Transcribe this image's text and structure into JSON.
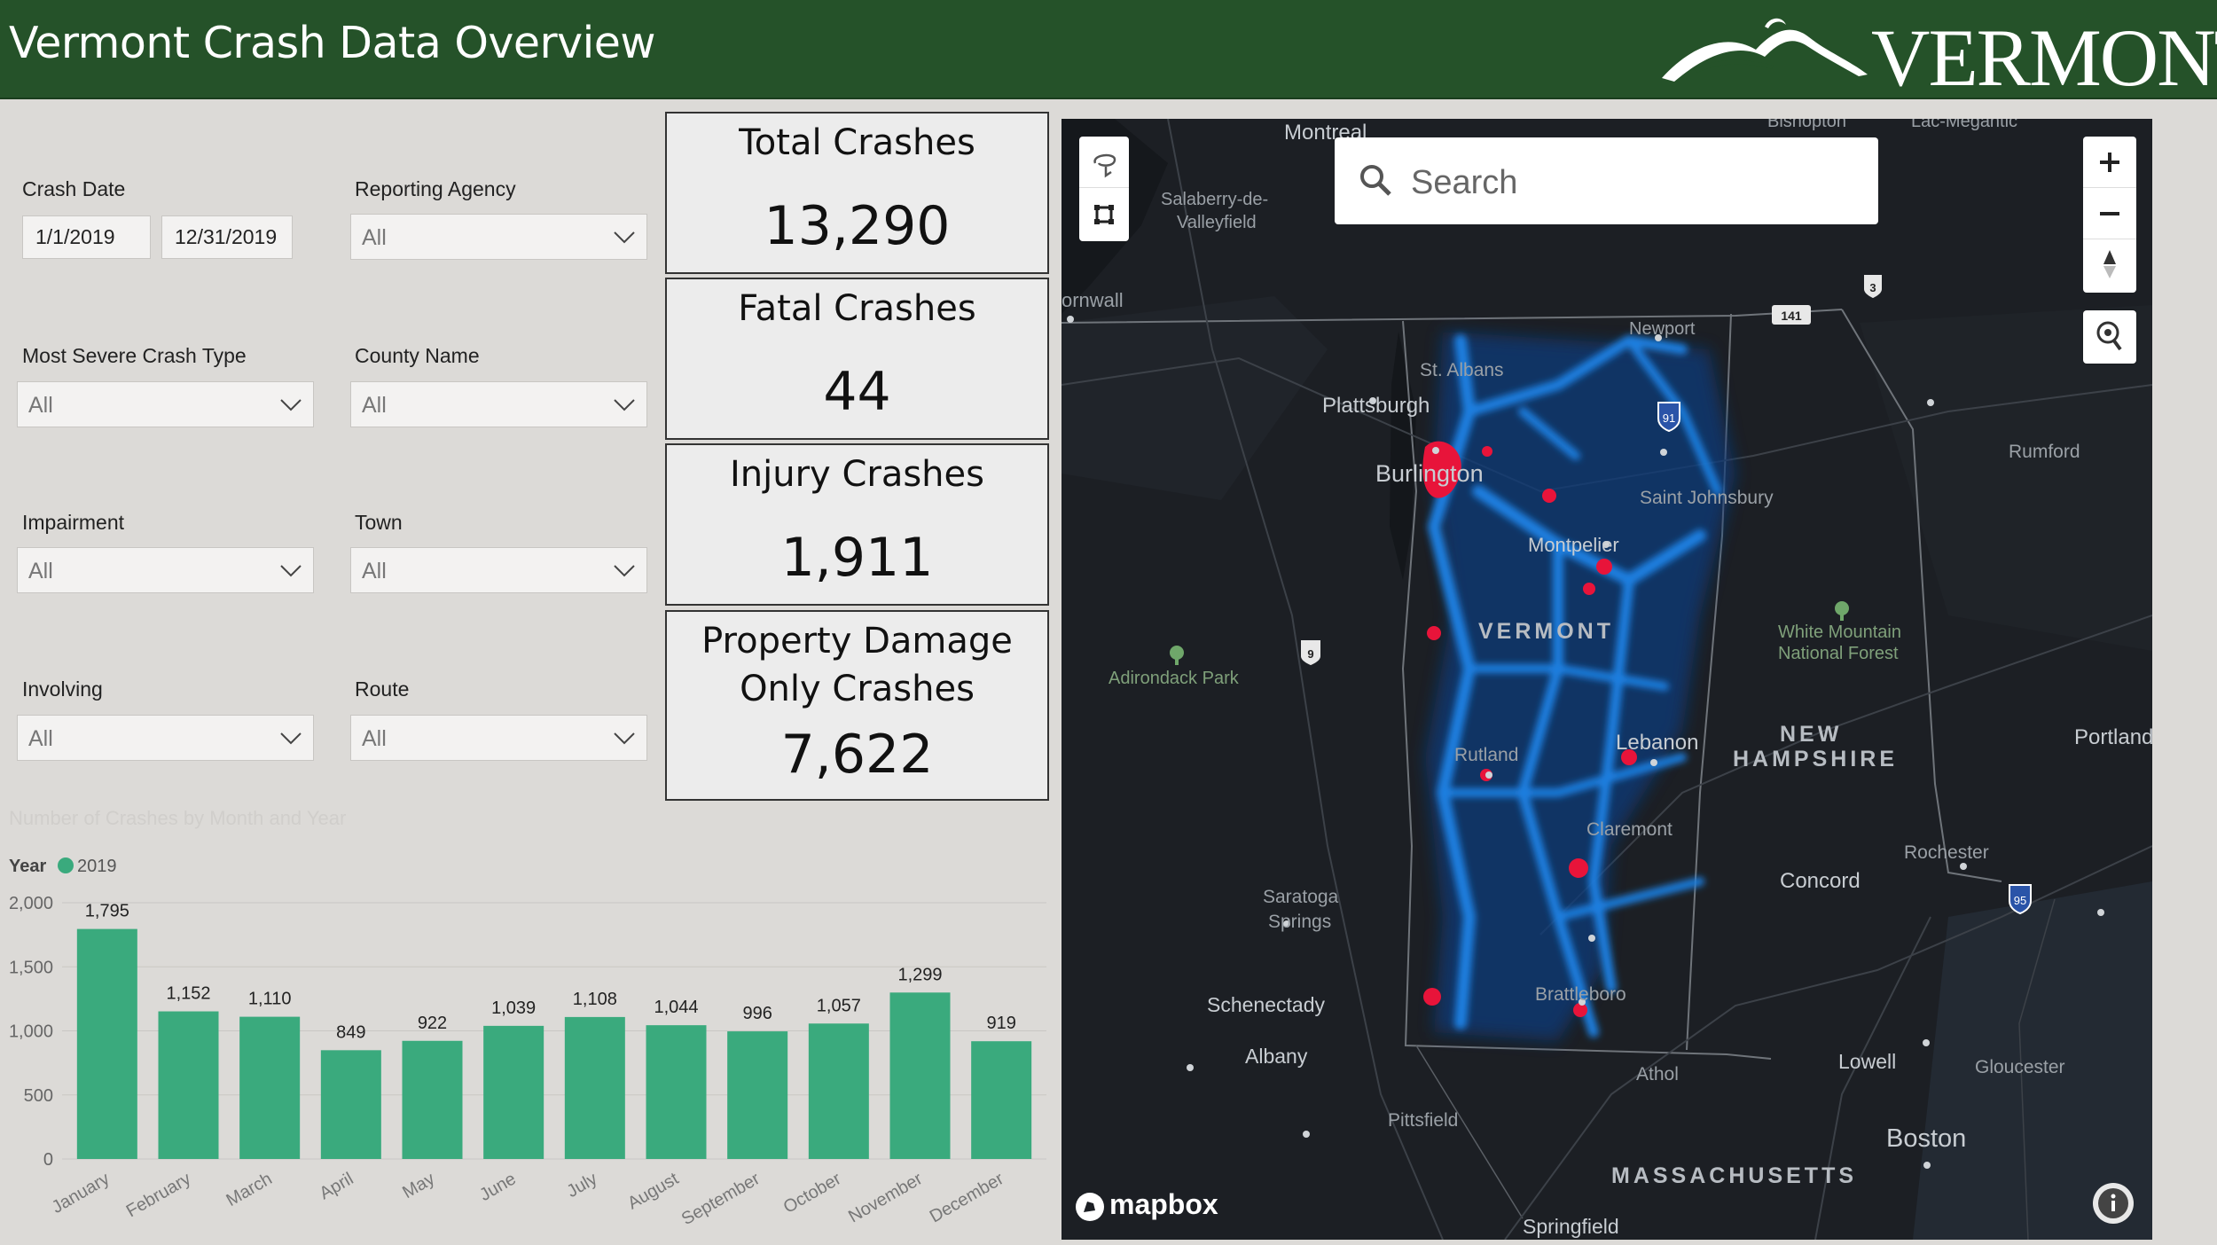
{
  "header": {
    "title": "Vermont Crash Data Overview",
    "logo_text": "VERMONT"
  },
  "filters": {
    "crash_date": {
      "label": "Crash Date",
      "start": "1/1/2019",
      "end": "12/31/2019"
    },
    "reporting_agency": {
      "label": "Reporting Agency",
      "value": "All"
    },
    "most_severe_crash_type": {
      "label": "Most Severe Crash Type",
      "value": "All"
    },
    "county_name": {
      "label": "County Name",
      "value": "All"
    },
    "impairment": {
      "label": "Impairment",
      "value": "All"
    },
    "town": {
      "label": "Town",
      "value": "All"
    },
    "involving": {
      "label": "Involving",
      "value": "All"
    },
    "route": {
      "label": "Route",
      "value": "All"
    }
  },
  "kpis": [
    {
      "title": "Total Crashes",
      "value": "13,290"
    },
    {
      "title": "Fatal Crashes",
      "value": "44"
    },
    {
      "title": "Injury Crashes",
      "value": "1,911"
    },
    {
      "title": "Property Damage Only Crashes",
      "title_line1": "Property Damage",
      "title_line2": "Only Crashes",
      "value": "7,622"
    }
  ],
  "chart_data": {
    "type": "bar",
    "title": "Number of Crashes by Month and Year",
    "legend_title": "Year",
    "categories": [
      "January",
      "February",
      "March",
      "April",
      "May",
      "June",
      "July",
      "August",
      "September",
      "October",
      "November",
      "December"
    ],
    "series": [
      {
        "name": "2019",
        "color": "#3aaa7d",
        "values": [
          1795,
          1152,
          1110,
          849,
          922,
          1039,
          1108,
          1044,
          996,
          1057,
          1299,
          919
        ]
      }
    ],
    "data_labels": [
      "1,795",
      "1,152",
      "1,110",
      "849",
      "922",
      "1,039",
      "1,108",
      "1,044",
      "996",
      "1,057",
      "1,299",
      "919"
    ],
    "y_ticks": [
      0,
      500,
      1000,
      1500,
      2000
    ],
    "y_tick_labels": [
      "0",
      "500",
      "1,000",
      "1,500",
      "2,000"
    ],
    "ylim": [
      0,
      2000
    ],
    "grid": true,
    "legend_position": "top-left"
  },
  "map": {
    "search_placeholder": "Search",
    "attribution": "mapbox",
    "labels": {
      "montreal": "Montreal",
      "salaberry": "Salaberry-de-",
      "valleyfield": "Valleyfield",
      "cornwall": "ornwall",
      "sherbrooke": "Bishopton",
      "lac_megantic": "Lac-Mégantic",
      "newport": "Newport",
      "st_albans": "St. Albans",
      "plattsburgh": "Plattsburgh",
      "burlington": "Burlington",
      "saint_johnsbury": "Saint Johnsbury",
      "montpelier": "Montpelier",
      "vermont": "VERMONT",
      "rumford": "Rumford",
      "white_mountain": "White Mountain",
      "national_forest": "National Forest",
      "adirondack": "Adirondack Park",
      "rutland": "Rutland",
      "lebanon": "Lebanon",
      "new": "NEW",
      "hampshire": "HAMPSHIRE",
      "portland": "Portland",
      "claremont": "Claremont",
      "rochester": "Rochester",
      "concord": "Concord",
      "saratoga": "Saratoga",
      "springs": "Springs",
      "schenectady": "Schenectady",
      "brattleboro": "Brattleboro",
      "albany": "Albany",
      "lowell": "Lowell",
      "gloucester": "Gloucester",
      "athol": "Athol",
      "pittsfield": "Pittsfield",
      "boston": "Boston",
      "massachusetts": "MASSACHUSETTS",
      "springfield": "Springfield"
    },
    "shields": {
      "i91": "91",
      "i95": "95",
      "us3": "3",
      "us9": "9",
      "r141": "141"
    }
  },
  "colors": {
    "header_bg": "#255229",
    "bar": "#3aaa7d",
    "heat_blue": "#1e7bd8",
    "heat_red": "#e8143a"
  }
}
